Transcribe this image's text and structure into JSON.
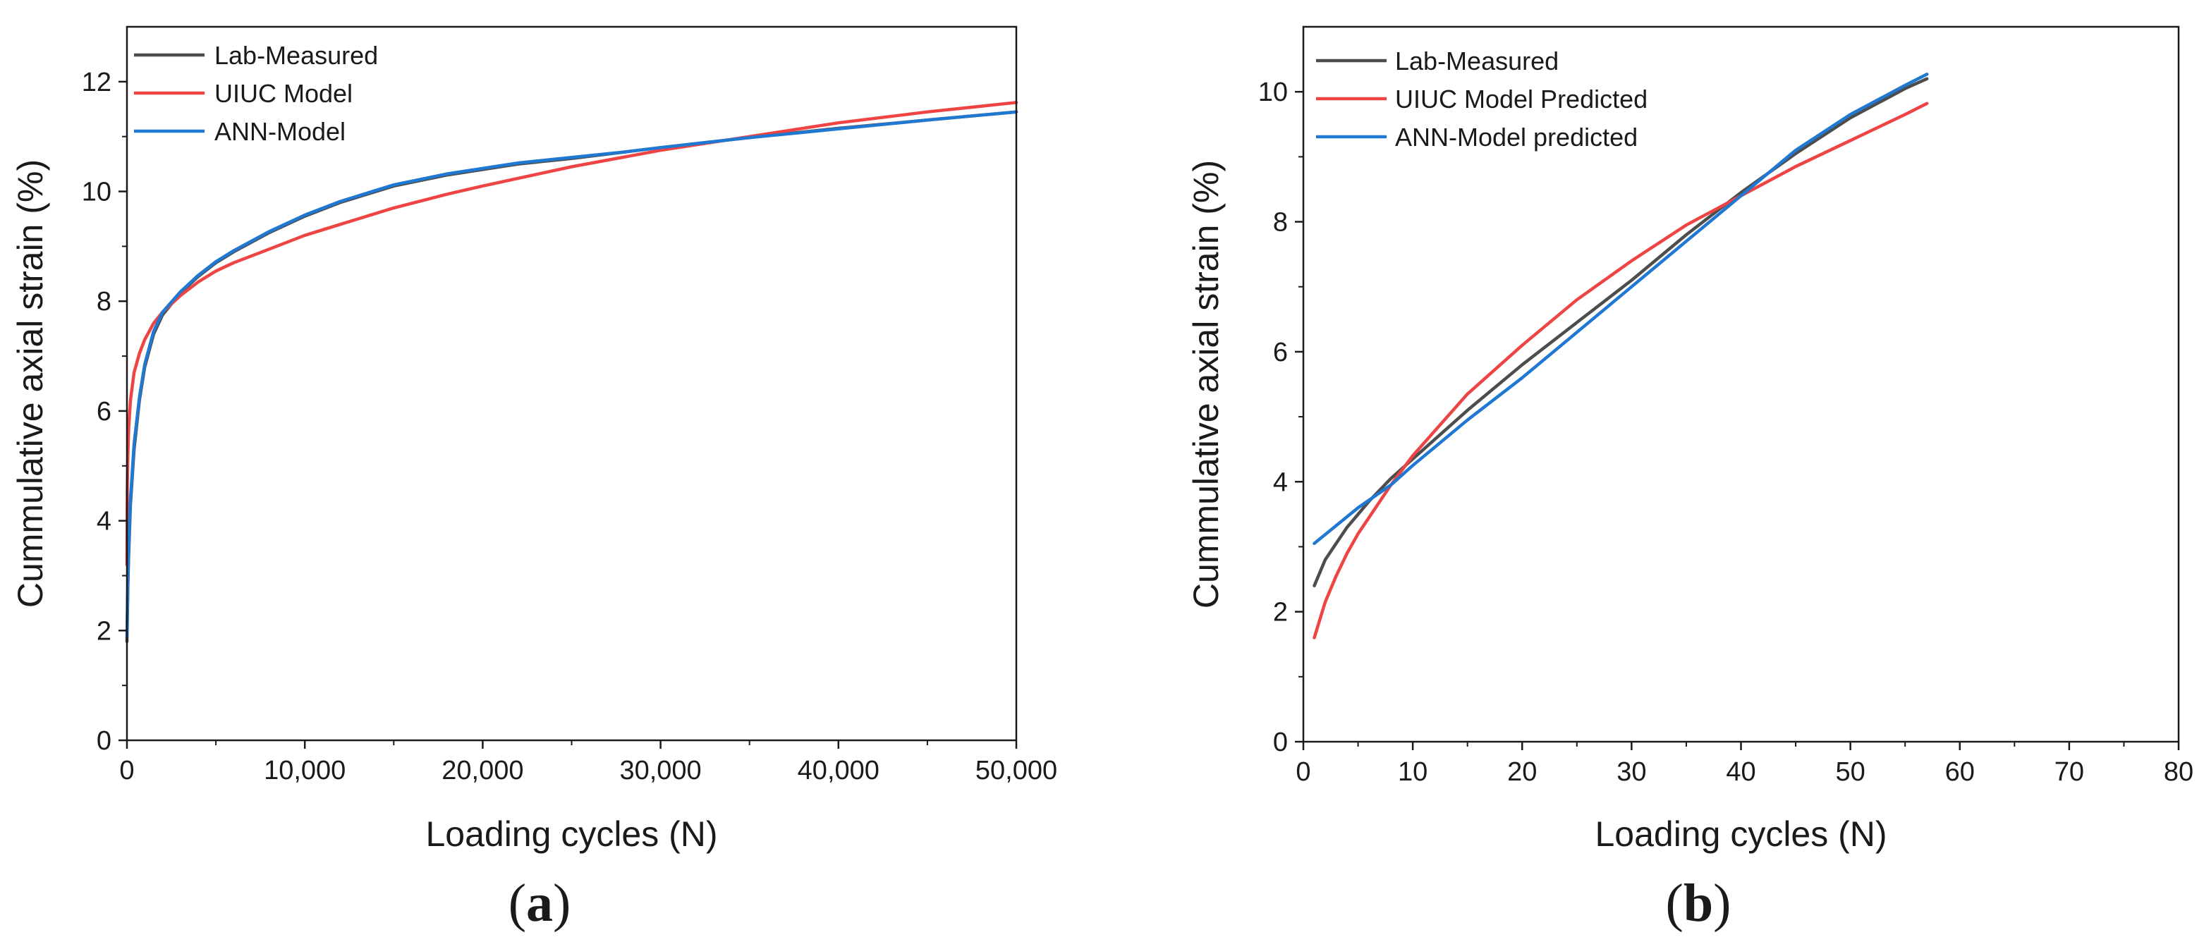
{
  "figure": {
    "panels": [
      {
        "label_open": "(",
        "label_letter": "a",
        "label_close": ")"
      },
      {
        "label_open": "(",
        "label_letter": "b",
        "label_close": ")"
      }
    ]
  },
  "chart_data": [
    {
      "type": "line",
      "panel": "a",
      "title": "",
      "xlabel": "Loading cycles (N)",
      "ylabel": "Cummulative axial strain (%)",
      "xlim": [
        0,
        50000
      ],
      "ylim": [
        0,
        13
      ],
      "xticks": [
        0,
        10000,
        20000,
        30000,
        40000,
        50000
      ],
      "xtick_labels": [
        "0",
        "10,000",
        "20,000",
        "30,000",
        "40,000",
        "50,000"
      ],
      "yticks": [
        0,
        2,
        4,
        6,
        8,
        10,
        12
      ],
      "ytick_labels": [
        "0",
        "2",
        "4",
        "6",
        "8",
        "10",
        "12"
      ],
      "grid": false,
      "legend_position": "top-left",
      "series": [
        {
          "name": "Lab-Measured",
          "color": "#4d4d4d",
          "x": [
            1,
            50,
            100,
            200,
            400,
            700,
            1000,
            1500,
            2000,
            3000,
            4000,
            5000,
            6000,
            8000,
            10000,
            12000,
            15000,
            18000,
            20000,
            22000,
            25000,
            28000,
            30000,
            35000,
            40000,
            45000,
            50000
          ],
          "y": [
            1.8,
            2.8,
            3.4,
            4.3,
            5.3,
            6.2,
            6.8,
            7.4,
            7.75,
            8.15,
            8.45,
            8.7,
            8.9,
            9.25,
            9.55,
            9.8,
            10.1,
            10.3,
            10.4,
            10.5,
            10.6,
            10.72,
            10.8,
            10.98,
            11.15,
            11.3,
            11.45
          ]
        },
        {
          "name": "UIUC Model",
          "color": "#ef4444",
          "x": [
            1,
            20,
            50,
            100,
            200,
            400,
            700,
            1000,
            1500,
            2000,
            3000,
            4000,
            5000,
            6000,
            8000,
            10000,
            12000,
            15000,
            18000,
            20000,
            25000,
            30000,
            35000,
            40000,
            45000,
            50000
          ],
          "y": [
            3.2,
            4.6,
            5.2,
            5.7,
            6.2,
            6.7,
            7.05,
            7.3,
            7.6,
            7.8,
            8.1,
            8.35,
            8.55,
            8.7,
            8.95,
            9.2,
            9.4,
            9.7,
            9.95,
            10.1,
            10.45,
            10.75,
            11.0,
            11.25,
            11.45,
            11.62
          ]
        },
        {
          "name": "ANN-Model",
          "color": "#1f78d1",
          "x": [
            1,
            50,
            100,
            200,
            400,
            700,
            1000,
            1500,
            2000,
            3000,
            4000,
            5000,
            6000,
            8000,
            10000,
            12000,
            15000,
            18000,
            20000,
            22000,
            25000,
            28000,
            30000,
            35000,
            40000,
            45000,
            50000
          ],
          "y": [
            1.9,
            2.9,
            3.5,
            4.4,
            5.4,
            6.25,
            6.85,
            7.45,
            7.8,
            8.17,
            8.47,
            8.72,
            8.92,
            9.27,
            9.57,
            9.82,
            10.12,
            10.32,
            10.42,
            10.52,
            10.62,
            10.72,
            10.8,
            10.98,
            11.14,
            11.3,
            11.45
          ]
        }
      ]
    },
    {
      "type": "line",
      "panel": "b",
      "title": "",
      "xlabel": "Loading cycles (N)",
      "ylabel": "Cummulative axial strain (%)",
      "xlim": [
        0,
        80
      ],
      "ylim": [
        0,
        11
      ],
      "xticks": [
        0,
        10,
        20,
        30,
        40,
        50,
        60,
        70,
        80
      ],
      "xtick_labels": [
        "0",
        "10",
        "20",
        "30",
        "40",
        "50",
        "60",
        "70",
        "80"
      ],
      "yticks": [
        0,
        2,
        4,
        6,
        8,
        10
      ],
      "ytick_labels": [
        "0",
        "2",
        "4",
        "6",
        "8",
        "10"
      ],
      "grid": false,
      "legend_position": "top-left",
      "series": [
        {
          "name": "Lab-Measured",
          "color": "#4d4d4d",
          "x": [
            1,
            2,
            3,
            4,
            5,
            6,
            8,
            10,
            15,
            20,
            25,
            30,
            35,
            40,
            45,
            50,
            55,
            57
          ],
          "y": [
            2.4,
            2.8,
            3.05,
            3.3,
            3.5,
            3.7,
            4.05,
            4.35,
            5.1,
            5.8,
            6.45,
            7.1,
            7.8,
            8.45,
            9.05,
            9.6,
            10.05,
            10.2
          ]
        },
        {
          "name": "UIUC Model Predicted",
          "color": "#ef4444",
          "x": [
            1,
            2,
            3,
            4,
            5,
            6,
            8,
            10,
            15,
            20,
            25,
            30,
            35,
            40,
            45,
            50,
            55,
            57
          ],
          "y": [
            1.6,
            2.15,
            2.55,
            2.9,
            3.2,
            3.45,
            3.95,
            4.4,
            5.35,
            6.1,
            6.8,
            7.4,
            7.95,
            8.4,
            8.85,
            9.25,
            9.65,
            9.82
          ]
        },
        {
          "name": "ANN-Model predicted",
          "color": "#1f78d1",
          "x": [
            1,
            5,
            8,
            10,
            15,
            20,
            25,
            30,
            35,
            40,
            45,
            50,
            55,
            57
          ],
          "y": [
            3.05,
            3.6,
            3.95,
            4.25,
            4.95,
            5.6,
            6.3,
            7.0,
            7.7,
            8.4,
            9.1,
            9.65,
            10.1,
            10.27
          ]
        }
      ]
    }
  ]
}
